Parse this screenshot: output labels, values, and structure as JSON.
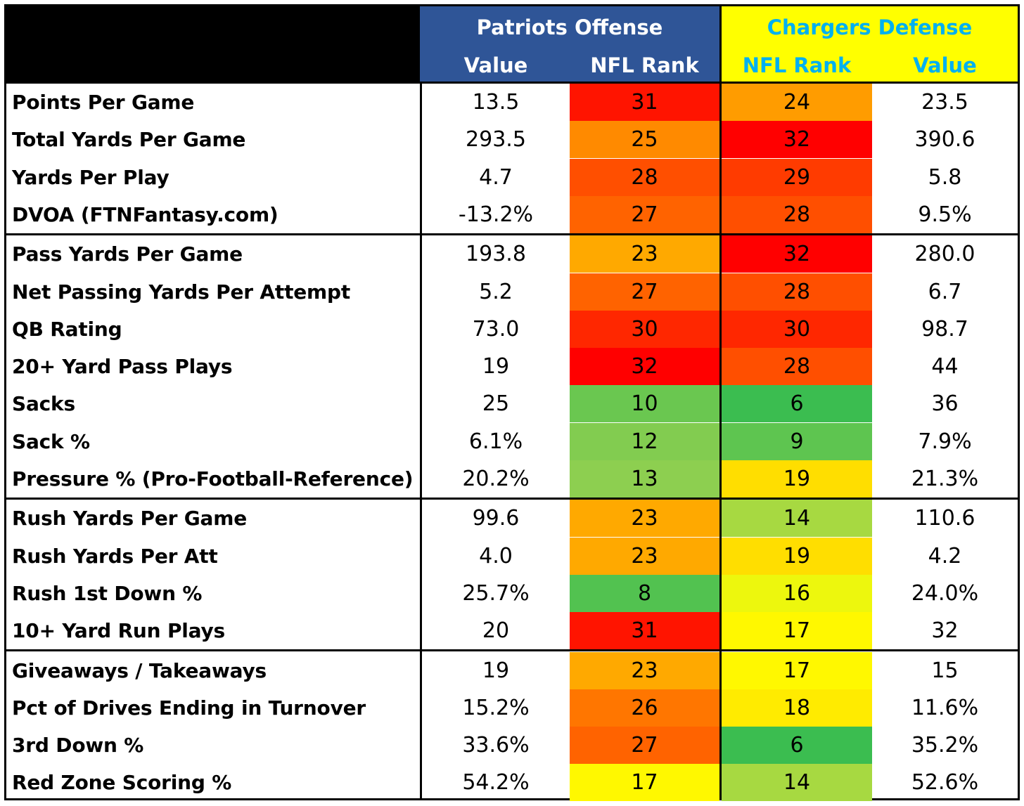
{
  "chart_data": {
    "type": "table",
    "title": "",
    "offense_team": "Patriots Offense",
    "defense_team": "Chargers Defense",
    "columns": {
      "offense_value": "Value",
      "offense_rank": "NFL Rank",
      "defense_rank": "NFL Rank",
      "defense_value": "Value"
    },
    "colors": {
      "offense_header_bg": "#2f5597",
      "offense_header_text": "#ffffff",
      "defense_header_bg": "#ffff00",
      "defense_header_text": "#00b0f0"
    },
    "rows": [
      {
        "label": "Points Per Game",
        "off_value": "13.5",
        "off_rank": 31,
        "def_rank": 24,
        "def_value": "23.5"
      },
      {
        "label": "Total Yards Per Game",
        "off_value": "293.5",
        "off_rank": 25,
        "def_rank": 32,
        "def_value": "390.6"
      },
      {
        "label": "Yards Per Play",
        "off_value": "4.7",
        "off_rank": 28,
        "def_rank": 29,
        "def_value": "5.8"
      },
      {
        "label": "DVOA (FTNFantasy.com)",
        "off_value": "-13.2%",
        "off_rank": 27,
        "def_rank": 28,
        "def_value": "9.5%"
      },
      {
        "label": "Pass Yards Per Game",
        "off_value": "193.8",
        "off_rank": 23,
        "def_rank": 32,
        "def_value": "280.0"
      },
      {
        "label": "Net Passing Yards Per Attempt",
        "off_value": "5.2",
        "off_rank": 27,
        "def_rank": 28,
        "def_value": "6.7"
      },
      {
        "label": "QB Rating",
        "off_value": "73.0",
        "off_rank": 30,
        "def_rank": 30,
        "def_value": "98.7"
      },
      {
        "label": "20+ Yard Pass Plays",
        "off_value": "19",
        "off_rank": 32,
        "def_rank": 28,
        "def_value": "44"
      },
      {
        "label": "Sacks",
        "off_value": "25",
        "off_rank": 10,
        "def_rank": 6,
        "def_value": "36"
      },
      {
        "label": "Sack %",
        "off_value": "6.1%",
        "off_rank": 12,
        "def_rank": 9,
        "def_value": "7.9%"
      },
      {
        "label": "Pressure % (Pro-Football-Reference)",
        "off_value": "20.2%",
        "off_rank": 13,
        "def_rank": 19,
        "def_value": "21.3%"
      },
      {
        "label": "Rush Yards Per Game",
        "off_value": "99.6",
        "off_rank": 23,
        "def_rank": 14,
        "def_value": "110.6"
      },
      {
        "label": "Rush Yards Per Att",
        "off_value": "4.0",
        "off_rank": 23,
        "def_rank": 19,
        "def_value": "4.2"
      },
      {
        "label": "Rush 1st Down %",
        "off_value": "25.7%",
        "off_rank": 8,
        "def_rank": 16,
        "def_value": "24.0%"
      },
      {
        "label": "10+ Yard Run Plays",
        "off_value": "20",
        "off_rank": 31,
        "def_rank": 17,
        "def_value": "32"
      },
      {
        "label": "Giveaways / Takeaways",
        "off_value": "19",
        "off_rank": 23,
        "def_rank": 17,
        "def_value": "15"
      },
      {
        "label": "Pct of Drives Ending in Turnover",
        "off_value": "15.2%",
        "off_rank": 26,
        "def_rank": 18,
        "def_value": "11.6%"
      },
      {
        "label": "3rd Down %",
        "off_value": "33.6%",
        "off_rank": 27,
        "def_rank": 6,
        "def_value": "35.2%"
      },
      {
        "label": "Red Zone Scoring %",
        "off_value": "54.2%",
        "off_rank": 17,
        "def_rank": 14,
        "def_value": "52.6%"
      }
    ],
    "row_groups": [
      4,
      7,
      4,
      4
    ]
  }
}
